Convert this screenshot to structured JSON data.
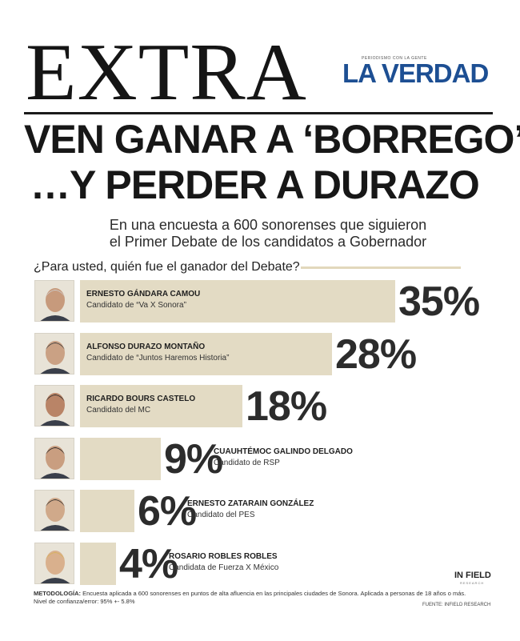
{
  "masthead": {
    "title": "EXTRA",
    "logo_tagline": "PERIODISMO CON LA GENTE",
    "logo_text": "LA VERDAD"
  },
  "headline": {
    "line1": "VEN GANAR A ‘BORREGO’",
    "line2": "…Y PERDER A DURAZO"
  },
  "subtitle": {
    "line1": "En una encuesta a 600 sonorenses que siguieron",
    "line2": "el Primer Debate de los candidatos a Gobernador"
  },
  "question": "¿Para usted, quién fue el ganador del Debate?",
  "colors": {
    "bar": "#e3dbc4",
    "accent_line": "#e2d8bc",
    "logo": "#1d4f93"
  },
  "chart_data": {
    "type": "bar",
    "orientation": "horizontal",
    "categories": [
      "ERNESTO GÁNDARA CAMOU",
      "ALFONSO DURAZO MONTAÑO",
      "RICARDO BOURS CASTELO",
      "CUAUHTÉMOC GALINDO DELGADO",
      "ERNESTO ZATARAIN GONZÁLEZ",
      "ROSARIO ROBLES ROBLES"
    ],
    "parties": [
      "Candidato de “Va X Sonora”",
      "Candidato de “Juntos Haremos Historia”",
      "Candidato del MC",
      "Candidato de RSP",
      "Candidato del PES",
      "Candidata de Fuerza X México"
    ],
    "values": [
      35,
      28,
      18,
      9,
      6,
      4
    ],
    "value_labels": [
      "35%",
      "28%",
      "18%",
      "9%",
      "6%",
      "4%"
    ],
    "xlim": [
      0,
      35
    ],
    "grid": false
  },
  "footer": {
    "brand": "IN FIELD",
    "brand_sub": "RESEARCH",
    "method_label": "METODOLOGÍA:",
    "method_text": "Encuesta aplicada a 600 sonorenses en puntos de alta afluencia en las principales ciudades de Sonora. Aplicada a personas de 18 años o más.",
    "confidence": "Nivel de confianza/error: 95% +- 5.8%",
    "source": "FUENTE: INFIELD RESEARCH"
  }
}
